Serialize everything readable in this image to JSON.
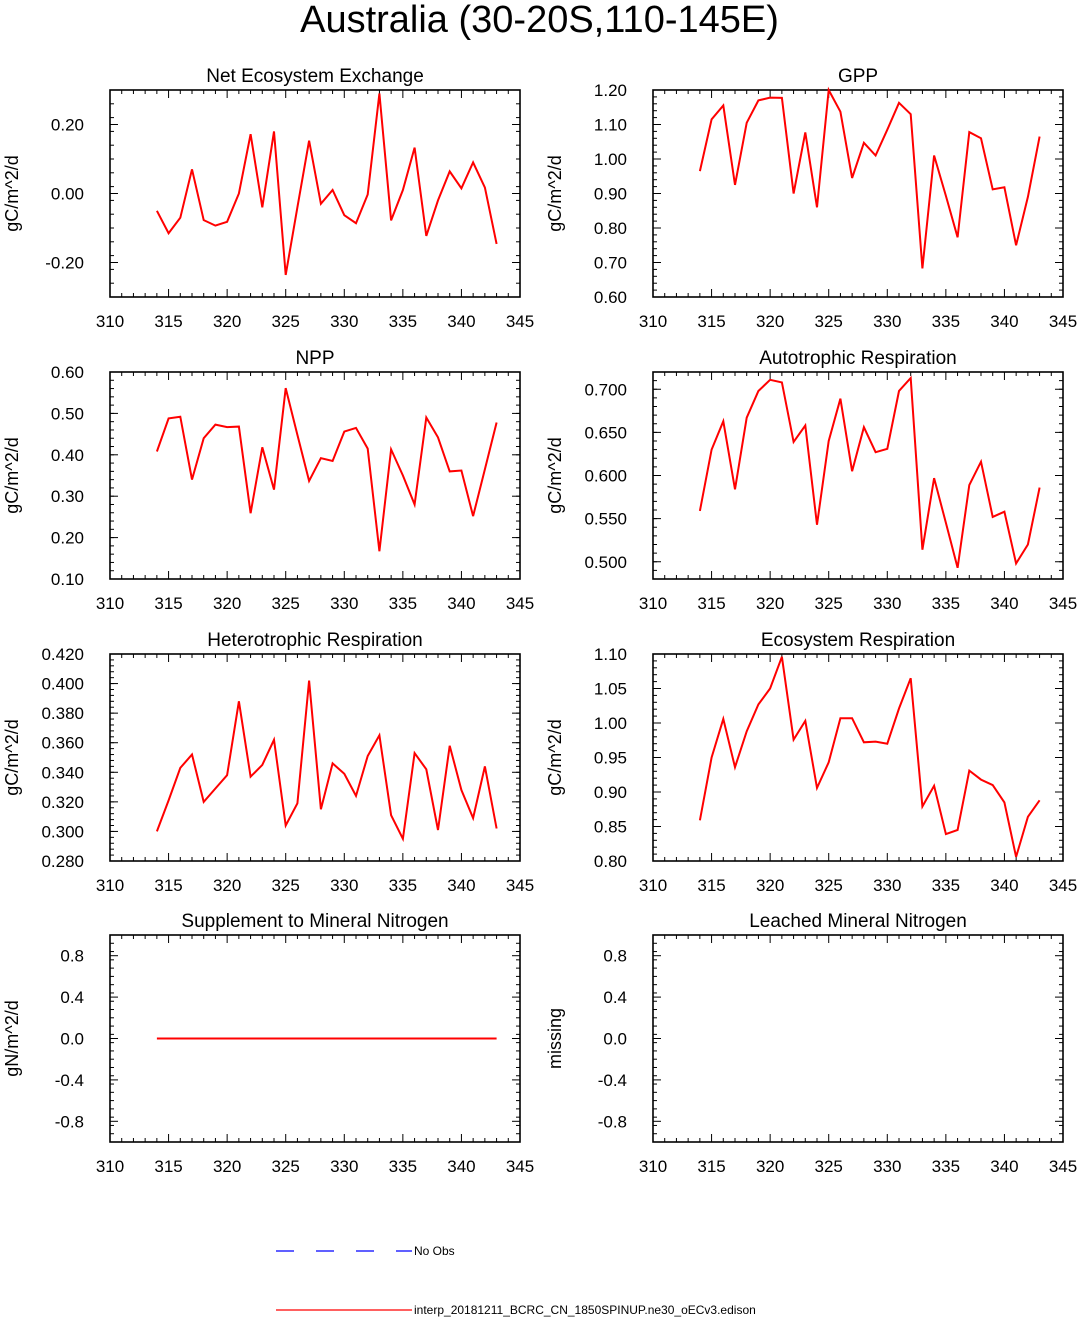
{
  "title": "Australia (30-20S,110-145E)",
  "colors": {
    "model": "#ff0000",
    "obs": "#0000ff",
    "axis": "#000000"
  },
  "legend": {
    "obs_label": "No Obs",
    "model_label": "interp_20181211_BCRC_CN_1850SPINUP.ne30_oECv3.edison"
  },
  "chart_data": [
    {
      "type": "line",
      "title": "Net Ecosystem Exchange",
      "ylabel": "gC/m^2/d",
      "xlim": [
        310,
        345
      ],
      "ylim": [
        -0.3,
        0.3
      ],
      "xticks": [
        "310",
        "315",
        "320",
        "325",
        "330",
        "335",
        "340",
        "345"
      ],
      "yticks": [
        {
          "v": 0.2,
          "label": "0.20"
        },
        {
          "v": 0.0,
          "label": "0.00"
        },
        {
          "v": -0.2,
          "label": "-0.20"
        }
      ],
      "yminor": 0.04,
      "x": [
        314,
        315,
        316,
        317,
        318,
        319,
        320,
        321,
        322,
        323,
        324,
        325,
        326,
        327,
        328,
        329,
        330,
        331,
        332,
        333,
        334,
        335,
        336,
        337,
        338,
        339,
        340,
        341,
        342,
        343
      ],
      "series": [
        {
          "name": "model",
          "values": [
            -0.05,
            -0.115,
            -0.07,
            0.07,
            -0.077,
            -0.093,
            -0.082,
            0.0,
            0.172,
            -0.04,
            0.18,
            -0.236,
            -0.04,
            0.153,
            -0.03,
            0.01,
            -0.063,
            -0.086,
            -0.003,
            0.29,
            -0.078,
            0.01,
            0.133,
            -0.123,
            -0.02,
            0.064,
            0.015,
            0.09,
            0.017,
            -0.146
          ]
        }
      ]
    },
    {
      "type": "line",
      "title": "GPP",
      "ylabel": "gC/m^2/d",
      "xlim": [
        310,
        345
      ],
      "ylim": [
        0.6,
        1.2
      ],
      "xticks": [
        "310",
        "315",
        "320",
        "325",
        "330",
        "335",
        "340",
        "345"
      ],
      "yticks": [
        {
          "v": 1.2,
          "label": "1.20"
        },
        {
          "v": 1.1,
          "label": "1.10"
        },
        {
          "v": 1.0,
          "label": "1.00"
        },
        {
          "v": 0.9,
          "label": "0.90"
        },
        {
          "v": 0.8,
          "label": "0.80"
        },
        {
          "v": 0.7,
          "label": "0.70"
        },
        {
          "v": 0.6,
          "label": "0.60"
        }
      ],
      "yminor": 0.02,
      "x": [
        314,
        315,
        316,
        317,
        318,
        319,
        320,
        321,
        322,
        323,
        324,
        325,
        326,
        327,
        328,
        329,
        330,
        331,
        332,
        333,
        334,
        335,
        336,
        337,
        338,
        339,
        340,
        341,
        342,
        343
      ],
      "series": [
        {
          "name": "model",
          "values": [
            0.965,
            1.115,
            1.155,
            0.925,
            1.105,
            1.17,
            1.178,
            1.177,
            0.9,
            1.077,
            0.86,
            1.2,
            1.137,
            0.945,
            1.047,
            1.01,
            1.085,
            1.163,
            1.13,
            0.683,
            1.01,
            0.893,
            0.773,
            1.078,
            1.06,
            0.912,
            0.918,
            0.75,
            0.89,
            1.065
          ]
        }
      ]
    },
    {
      "type": "line",
      "title": "NPP",
      "ylabel": "gC/m^2/d",
      "xlim": [
        310,
        345
      ],
      "ylim": [
        0.1,
        0.6
      ],
      "xticks": [
        "310",
        "315",
        "320",
        "325",
        "330",
        "335",
        "340",
        "345"
      ],
      "yticks": [
        {
          "v": 0.6,
          "label": "0.60"
        },
        {
          "v": 0.5,
          "label": "0.50"
        },
        {
          "v": 0.4,
          "label": "0.40"
        },
        {
          "v": 0.3,
          "label": "0.30"
        },
        {
          "v": 0.2,
          "label": "0.20"
        },
        {
          "v": 0.1,
          "label": "0.10"
        }
      ],
      "yminor": 0.02,
      "x": [
        314,
        315,
        316,
        317,
        318,
        319,
        320,
        321,
        322,
        323,
        324,
        325,
        326,
        327,
        328,
        329,
        330,
        331,
        332,
        333,
        334,
        335,
        336,
        337,
        338,
        339,
        340,
        341,
        342,
        343
      ],
      "series": [
        {
          "name": "model",
          "values": [
            0.408,
            0.488,
            0.492,
            0.34,
            0.44,
            0.473,
            0.467,
            0.468,
            0.259,
            0.418,
            0.316,
            0.561,
            0.448,
            0.337,
            0.392,
            0.385,
            0.456,
            0.465,
            0.415,
            0.167,
            0.413,
            0.35,
            0.28,
            0.49,
            0.442,
            0.36,
            0.362,
            0.252,
            0.365,
            0.478
          ]
        }
      ]
    },
    {
      "type": "line",
      "title": "Autotrophic Respiration",
      "ylabel": "gC/m^2/d",
      "xlim": [
        310,
        345
      ],
      "ylim": [
        0.48,
        0.72
      ],
      "xticks": [
        "310",
        "315",
        "320",
        "325",
        "330",
        "335",
        "340",
        "345"
      ],
      "yticks": [
        {
          "v": 0.7,
          "label": "0.700"
        },
        {
          "v": 0.65,
          "label": "0.650"
        },
        {
          "v": 0.6,
          "label": "0.600"
        },
        {
          "v": 0.55,
          "label": "0.550"
        },
        {
          "v": 0.5,
          "label": "0.500"
        }
      ],
      "yminor": 0.01,
      "x": [
        314,
        315,
        316,
        317,
        318,
        319,
        320,
        321,
        322,
        323,
        324,
        325,
        326,
        327,
        328,
        329,
        330,
        331,
        332,
        333,
        334,
        335,
        336,
        337,
        338,
        339,
        340,
        341,
        342,
        343
      ],
      "series": [
        {
          "name": "model",
          "values": [
            0.559,
            0.63,
            0.663,
            0.584,
            0.667,
            0.698,
            0.711,
            0.708,
            0.639,
            0.658,
            0.543,
            0.64,
            0.689,
            0.605,
            0.656,
            0.627,
            0.631,
            0.698,
            0.713,
            0.514,
            0.597,
            0.545,
            0.493,
            0.589,
            0.616,
            0.552,
            0.558,
            0.498,
            0.52,
            0.586
          ]
        }
      ]
    },
    {
      "type": "line",
      "title": "Heterotrophic Respiration",
      "ylabel": "gC/m^2/d",
      "xlim": [
        310,
        345
      ],
      "ylim": [
        0.28,
        0.42
      ],
      "xticks": [
        "310",
        "315",
        "320",
        "325",
        "330",
        "335",
        "340",
        "345"
      ],
      "yticks": [
        {
          "v": 0.42,
          "label": "0.420"
        },
        {
          "v": 0.4,
          "label": "0.400"
        },
        {
          "v": 0.38,
          "label": "0.380"
        },
        {
          "v": 0.36,
          "label": "0.360"
        },
        {
          "v": 0.34,
          "label": "0.340"
        },
        {
          "v": 0.32,
          "label": "0.320"
        },
        {
          "v": 0.3,
          "label": "0.300"
        },
        {
          "v": 0.28,
          "label": "0.280"
        }
      ],
      "yminor": 0.004,
      "x": [
        314,
        315,
        316,
        317,
        318,
        319,
        320,
        321,
        322,
        323,
        324,
        325,
        326,
        327,
        328,
        329,
        330,
        331,
        332,
        333,
        334,
        335,
        336,
        337,
        338,
        339,
        340,
        341,
        342,
        343
      ],
      "series": [
        {
          "name": "model",
          "values": [
            0.3,
            0.321,
            0.343,
            0.352,
            0.32,
            0.329,
            0.338,
            0.388,
            0.337,
            0.345,
            0.362,
            0.304,
            0.319,
            0.402,
            0.315,
            0.346,
            0.339,
            0.324,
            0.351,
            0.365,
            0.311,
            0.295,
            0.353,
            0.342,
            0.301,
            0.358,
            0.328,
            0.309,
            0.344,
            0.302
          ]
        }
      ]
    },
    {
      "type": "line",
      "title": "Ecosystem Respiration",
      "ylabel": "gC/m^2/d",
      "xlim": [
        310,
        345
      ],
      "ylim": [
        0.8,
        1.1
      ],
      "xticks": [
        "310",
        "315",
        "320",
        "325",
        "330",
        "335",
        "340",
        "345"
      ],
      "yticks": [
        {
          "v": 1.1,
          "label": "1.10"
        },
        {
          "v": 1.05,
          "label": "1.05"
        },
        {
          "v": 1.0,
          "label": "1.00"
        },
        {
          "v": 0.95,
          "label": "0.95"
        },
        {
          "v": 0.9,
          "label": "0.90"
        },
        {
          "v": 0.85,
          "label": "0.85"
        },
        {
          "v": 0.8,
          "label": "0.80"
        }
      ],
      "yminor": 0.01,
      "x": [
        314,
        315,
        316,
        317,
        318,
        319,
        320,
        321,
        322,
        323,
        324,
        325,
        326,
        327,
        328,
        329,
        330,
        331,
        332,
        333,
        334,
        335,
        336,
        337,
        338,
        339,
        340,
        341,
        342,
        343
      ],
      "series": [
        {
          "name": "model",
          "values": [
            0.859,
            0.95,
            1.006,
            0.936,
            0.988,
            1.027,
            1.05,
            1.096,
            0.976,
            1.003,
            0.906,
            0.943,
            1.007,
            1.007,
            0.972,
            0.973,
            0.97,
            1.021,
            1.065,
            0.879,
            0.909,
            0.839,
            0.845,
            0.931,
            0.918,
            0.91,
            0.885,
            0.806,
            0.864,
            0.888
          ]
        }
      ]
    },
    {
      "type": "line",
      "title": "Supplement to Mineral Nitrogen",
      "ylabel": "gN/m^2/d",
      "xlim": [
        310,
        345
      ],
      "ylim": [
        -1.0,
        1.0
      ],
      "xticks": [
        "310",
        "315",
        "320",
        "325",
        "330",
        "335",
        "340",
        "345"
      ],
      "yticks": [
        {
          "v": 0.8,
          "label": "0.8"
        },
        {
          "v": 0.4,
          "label": "0.4"
        },
        {
          "v": 0.0,
          "label": "0.0"
        },
        {
          "v": -0.4,
          "label": "-0.4"
        },
        {
          "v": -0.8,
          "label": "-0.8"
        }
      ],
      "yminor": 0.08,
      "x": [
        314,
        343
      ],
      "series": [
        {
          "name": "model",
          "values": [
            0.0,
            0.0
          ]
        }
      ]
    },
    {
      "type": "line",
      "title": "Leached Mineral Nitrogen",
      "ylabel": "missing",
      "xlim": [
        310,
        345
      ],
      "ylim": [
        -1.0,
        1.0
      ],
      "xticks": [
        "310",
        "315",
        "320",
        "325",
        "330",
        "335",
        "340",
        "345"
      ],
      "yticks": [
        {
          "v": 0.8,
          "label": "0.8"
        },
        {
          "v": 0.4,
          "label": "0.4"
        },
        {
          "v": 0.0,
          "label": "0.0"
        },
        {
          "v": -0.4,
          "label": "-0.4"
        },
        {
          "v": -0.8,
          "label": "-0.8"
        }
      ],
      "yminor": 0.08,
      "x": [],
      "series": []
    }
  ]
}
